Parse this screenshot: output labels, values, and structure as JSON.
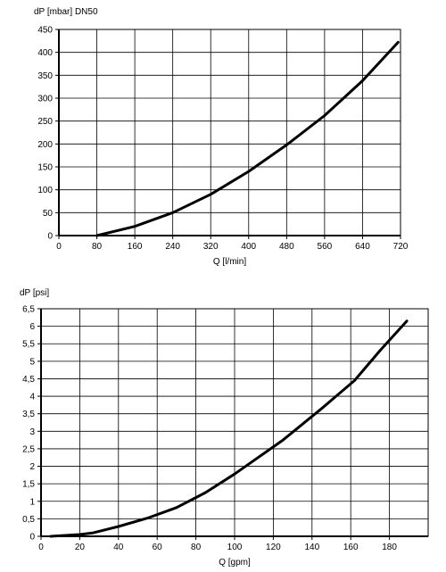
{
  "chart_data": [
    {
      "type": "line",
      "title": "dP [mbar] DN50",
      "xlabel": "Q [l/min]",
      "ylabel": "dP [mbar] DN50",
      "xlim": [
        0,
        720
      ],
      "ylim": [
        0,
        450
      ],
      "xticks": [
        0,
        80,
        160,
        240,
        320,
        400,
        480,
        560,
        640,
        720
      ],
      "yticks": [
        0,
        50,
        100,
        150,
        200,
        250,
        300,
        350,
        400,
        450
      ],
      "xtick_labels": [
        "0",
        "80",
        "160",
        "240",
        "320",
        "400",
        "480",
        "560",
        "640",
        "720"
      ],
      "ytick_labels": [
        "0",
        "50",
        "100",
        "150",
        "200",
        "250",
        "300",
        "350",
        "400",
        "450"
      ],
      "grid": true,
      "x": [
        80,
        160,
        240,
        320,
        400,
        480,
        560,
        640,
        715
      ],
      "y": [
        0,
        20,
        50,
        90,
        140,
        198,
        262,
        338,
        422
      ]
    },
    {
      "type": "line",
      "title": "dP [psi]",
      "xlabel": "Q [gpm]",
      "ylabel": "dP [psi]",
      "xlim": [
        0,
        200
      ],
      "ylim": [
        0,
        6.5
      ],
      "xticks": [
        0,
        20,
        40,
        60,
        80,
        100,
        120,
        140,
        160,
        180
      ],
      "yticks": [
        0,
        0.5,
        1,
        1.5,
        2,
        2.5,
        3,
        3.5,
        4,
        4.5,
        5,
        5.5,
        6,
        6.5
      ],
      "xtick_labels": [
        "0",
        "20",
        "40",
        "60",
        "80",
        "100",
        "120",
        "140",
        "160",
        "180"
      ],
      "ytick_labels": [
        "0",
        "0,5",
        "1",
        "1,5",
        "2",
        "2,5",
        "3",
        "3,5",
        "4",
        "4,5",
        "5",
        "5,5",
        "6",
        "6,5"
      ],
      "grid": true,
      "x": [
        5,
        20,
        27,
        40,
        55,
        70,
        85,
        100,
        125,
        145,
        162,
        175,
        189
      ],
      "y": [
        0,
        0.05,
        0.1,
        0.28,
        0.52,
        0.82,
        1.25,
        1.78,
        2.75,
        3.65,
        4.45,
        5.3,
        6.15
      ]
    }
  ]
}
